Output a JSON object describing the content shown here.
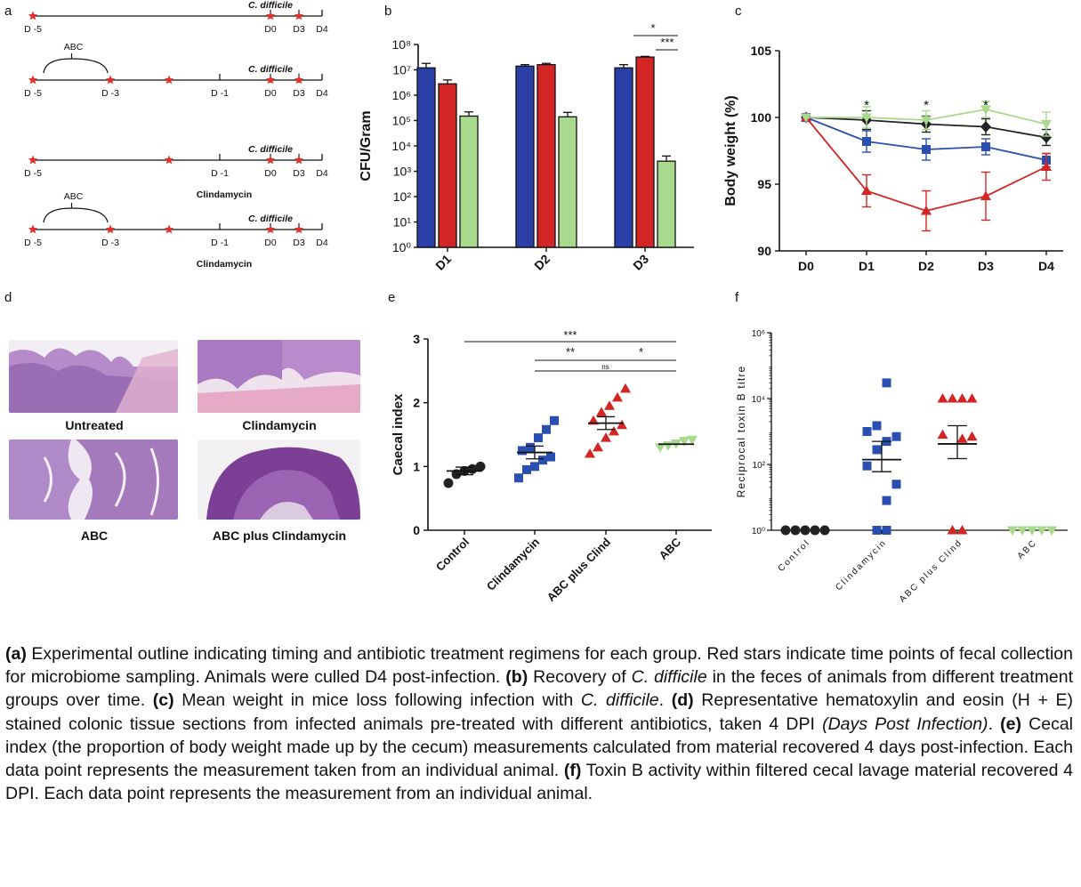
{
  "panels": {
    "a": {
      "letter": "a",
      "pathogen_label": "C. difficile",
      "timelines": [
        {
          "days": [
            "D -5",
            "D0",
            "D3",
            "D4"
          ],
          "stars_at": [
            "D -5",
            "D0",
            "D3"
          ],
          "bracket": null,
          "drug": null
        },
        {
          "days": [
            "D -5",
            "D -3",
            "D -1",
            "D0",
            "D3",
            "D4"
          ],
          "stars_at": [
            "D -5",
            "D -3",
            "mid",
            "D0",
            "D3"
          ],
          "bracket": "ABC",
          "drug": null
        },
        {
          "days": [
            "D -5",
            "D -1",
            "D0",
            "D3",
            "D4"
          ],
          "stars_at": [
            "D -5",
            "mid",
            "D0",
            "D3"
          ],
          "bracket": null,
          "drug": "Clindamycin"
        },
        {
          "days": [
            "D -5",
            "D -3",
            "D -1",
            "D0",
            "D3",
            "D4"
          ],
          "stars_at": [
            "D -5",
            "D -3",
            "mid",
            "D0",
            "D3"
          ],
          "bracket": "ABC",
          "drug": "Clindamycin"
        }
      ]
    },
    "b": {
      "letter": "b",
      "chart_data": {
        "type": "bar",
        "ylabel": "CFU/Gram",
        "yscale": "log",
        "ylim": [
          1,
          100000000
        ],
        "y_ticks": [
          "10⁰",
          "10¹",
          "10²",
          "10³",
          "10⁴",
          "10⁵",
          "10⁶",
          "10⁷",
          "10⁸"
        ],
        "categories": [
          "D1",
          "D2",
          "D3"
        ],
        "series": [
          {
            "color": "#2a3fa8",
            "values": [
              12000000,
              14000000,
              12000000
            ],
            "error_upper": [
              18000000,
              16000000,
              16000000
            ]
          },
          {
            "color": "#d42525",
            "values": [
              2800000,
              16000000,
              32000000
            ],
            "error_upper": [
              4000000,
              18000000,
              34000000
            ]
          },
          {
            "color": "#a8d98c",
            "values": [
              150000,
              140000,
              2500
            ],
            "error_upper": [
              220000,
              210000,
              4000
            ]
          }
        ],
        "significance": [
          "*",
          "***"
        ]
      }
    },
    "c": {
      "letter": "c",
      "chart_data": {
        "type": "line",
        "ylabel": "Body weight (%)",
        "x": [
          "D0",
          "D1",
          "D2",
          "D3",
          "D4"
        ],
        "ylim": [
          90,
          105
        ],
        "y_ticks": [
          "90",
          "95",
          "100",
          "105"
        ],
        "series": [
          {
            "color": "#222222",
            "marker": "diamond",
            "values": [
              100,
              99.8,
              99.5,
              99.3,
              98.5
            ],
            "errors": [
              0,
              0.7,
              0.6,
              0.6,
              0.6
            ]
          },
          {
            "color": "#2a4fb0",
            "marker": "square",
            "values": [
              100,
              98.2,
              97.6,
              97.8,
              96.8
            ],
            "errors": [
              0,
              0.8,
              0.8,
              0.6,
              0.5
            ]
          },
          {
            "color": "#d42525",
            "marker": "triangle",
            "values": [
              100,
              94.5,
              93.0,
              94.1,
              96.3
            ],
            "errors": [
              0,
              1.2,
              1.5,
              1.8,
              1.0
            ]
          },
          {
            "color": "#a8d98c",
            "marker": "triangle-down",
            "values": [
              100,
              100.0,
              99.8,
              100.6,
              99.5
            ],
            "errors": [
              0,
              0.8,
              0.7,
              0.6,
              0.9
            ]
          }
        ],
        "annotations": [
          "*",
          "*",
          "*"
        ]
      }
    },
    "d": {
      "letter": "d",
      "images": [
        {
          "label": "Untreated"
        },
        {
          "label": "Clindamycin"
        },
        {
          "label": "ABC"
        },
        {
          "label": "ABC plus Clindamycin"
        }
      ]
    },
    "e": {
      "letter": "e",
      "chart_data": {
        "type": "scatter",
        "ylabel": "Caecal index",
        "ylim": [
          0,
          3
        ],
        "y_ticks": [
          "0",
          "1",
          "2",
          "3"
        ],
        "categories": [
          "Control",
          "Clindamycin",
          "ABC plus Clind",
          "ABC"
        ],
        "groups": [
          {
            "color": "#222222",
            "marker": "circle",
            "points": [
              0.74,
              0.88,
              0.93,
              0.96,
              1.0
            ],
            "mean": 0.93,
            "sem": 0.06
          },
          {
            "color": "#2a4fb0",
            "marker": "square",
            "points": [
              0.82,
              0.95,
              1.0,
              1.1,
              1.15,
              1.25,
              1.3,
              1.45,
              1.58,
              1.72
            ],
            "mean": 1.22,
            "sem": 0.1
          },
          {
            "color": "#d42525",
            "marker": "triangle",
            "points": [
              1.2,
              1.3,
              1.45,
              1.55,
              1.65,
              1.72,
              1.85,
              1.95,
              2.08,
              2.22
            ],
            "mean": 1.68,
            "sem": 0.1
          },
          {
            "color": "#a8d98c",
            "marker": "triangle-down",
            "points": [
              1.3,
              1.33,
              1.36,
              1.4,
              1.42
            ],
            "mean": 1.35,
            "sem": 0.02
          }
        ],
        "comparisons": [
          {
            "from": "Control",
            "to": "ABC",
            "label": "***"
          },
          {
            "from": "Clindamycin",
            "to": "ABC plus Clind",
            "label": "**"
          },
          {
            "from": "Clindamycin",
            "to": "ABC",
            "label": "ns"
          },
          {
            "from": "ABC plus Clind",
            "to": "ABC",
            "label": "*"
          }
        ]
      }
    },
    "f": {
      "letter": "f",
      "chart_data": {
        "type": "scatter",
        "ylabel": "Reciprocal toxin B titre",
        "yscale": "log",
        "ylim": [
          1,
          1000000
        ],
        "y_ticks": [
          "10⁰",
          "10²",
          "10⁴",
          "10⁶"
        ],
        "categories": [
          "Control",
          "Clindamycin",
          "ABC plus Clind",
          "ABC"
        ],
        "groups": [
          {
            "color": "#222222",
            "marker": "circle",
            "points": [
              1,
              1,
              1,
              1,
              1
            ],
            "mean": 1,
            "sem_low": 1,
            "sem_high": 1
          },
          {
            "color": "#2a4fb0",
            "marker": "square",
            "points": [
              1,
              1,
              8,
              25,
              90,
              280,
              500,
              700,
              1000,
              1500,
              30000
            ],
            "mean": 140,
            "sem_low": 60,
            "sem_high": 500
          },
          {
            "color": "#d42525",
            "marker": "triangle",
            "points": [
              1,
              1,
              600,
              700,
              800,
              10000,
              10000,
              10000,
              10000
            ],
            "mean": 420,
            "sem_low": 150,
            "sem_high": 1500
          },
          {
            "color": "#a8d98c",
            "marker": "triangle-down",
            "points": [
              1,
              1,
              1,
              1,
              1
            ],
            "mean": 1,
            "sem_low": 1,
            "sem_high": 1
          }
        ]
      }
    }
  },
  "caption": [
    {
      "t": "(a)",
      "s": "b"
    },
    {
      "t": " Experimental outline indicating timing and antibiotic treatment regimens for each group. Red stars indicate time points of fecal collection for microbiome sampling. Animals were culled D4 post-infection. "
    },
    {
      "t": "(b)",
      "s": "b"
    },
    {
      "t": " Recovery of "
    },
    {
      "t": "C. difficile",
      "s": "i"
    },
    {
      "t": " in the feces of animals from different treatment groups over time. "
    },
    {
      "t": "(c)",
      "s": "b"
    },
    {
      "t": " Mean weight in mice loss following infection with "
    },
    {
      "t": "C. difficile",
      "s": "i"
    },
    {
      "t": ". "
    },
    {
      "t": "(d)",
      "s": "b"
    },
    {
      "t": " Representative hematoxylin and eosin (H + E) stained colonic tissue sections from infected animals pre-treated with different antibiotics, taken 4 DPI "
    },
    {
      "t": "(Days Post Infection)",
      "s": "i"
    },
    {
      "t": ". "
    },
    {
      "t": "(e)",
      "s": "b"
    },
    {
      "t": " Cecal index (the proportion of body weight made up by the cecum) measurements calculated from material recovered 4 days post-infection. Each data point represents the measurement taken from an individual animal. "
    },
    {
      "t": "(f)",
      "s": "b"
    },
    {
      "t": " Toxin B activity within filtered cecal lavage material recovered 4 DPI. Each data point represents the measurement from an individual animal."
    }
  ]
}
